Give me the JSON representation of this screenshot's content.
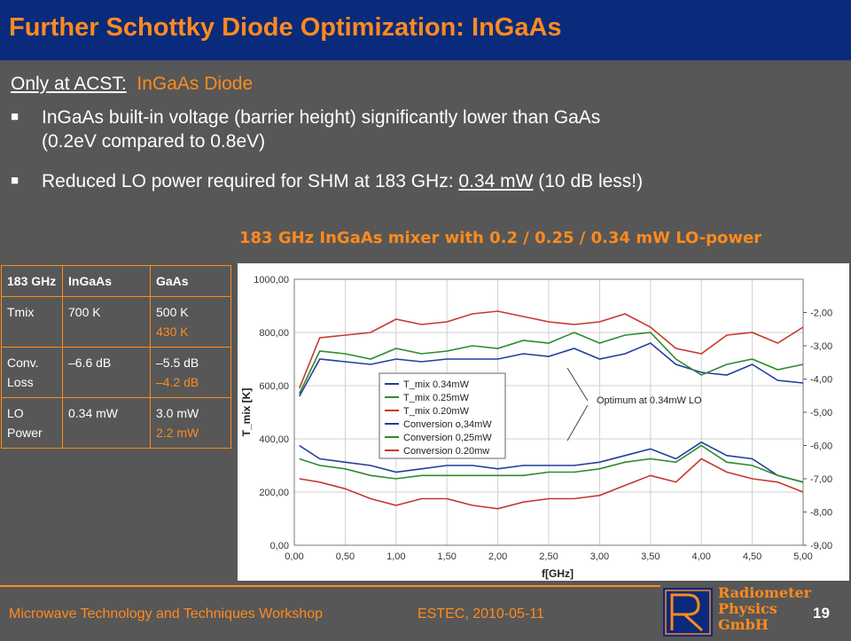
{
  "title": "Further Schottky Diode Optimization: InGaAs",
  "intro": {
    "underlined": "Only at ACST:",
    "rest": "InGaAs Diode"
  },
  "bullets": [
    {
      "mark": "■",
      "line1": "InGaAs built-in voltage (barrier height) significantly lower than GaAs",
      "line2": "(0.2eV compared to 0.8eV)"
    },
    {
      "mark": "■",
      "pre": "Reduced LO power required for SHM at 183 GHz: ",
      "ul": "0.34 mW",
      "post": " (10 dB less!)"
    }
  ],
  "chart_caption": "183 GHz InGaAs mixer with 0.2 / 0.25 / 0.34 mW LO-power",
  "table": {
    "header": [
      "183 GHz",
      "InGaAs",
      "GaAs"
    ],
    "rows": [
      {
        "label": "Tmix",
        "ingaas": "700 K",
        "gaas": "500 K",
        "gaas_alt": "430 K"
      },
      {
        "label": "Conv. Loss",
        "ingaas": "–6.6 dB",
        "gaas": "–5.5 dB",
        "gaas_alt": "–4.2 dB"
      },
      {
        "label": "LO Power",
        "ingaas": "0.34 mW",
        "gaas": "3.0 mW",
        "gaas_alt": "2.2 mW"
      }
    ]
  },
  "chart_data": {
    "type": "line",
    "xlabel": "f[GHz]",
    "ylabel": "T_mix [K]",
    "xlim": [
      0,
      5
    ],
    "ylim": [
      0,
      1000
    ],
    "y2lim": [
      -9,
      -1
    ],
    "x_ticks": [
      "0,00",
      "0,50",
      "1,00",
      "1,50",
      "2,00",
      "2,50",
      "3,00",
      "3,50",
      "4,00",
      "4,50",
      "5,00"
    ],
    "y_ticks": [
      "0,00",
      "200,00",
      "400,00",
      "600,00",
      "800,00",
      "1000,00"
    ],
    "y2_ticks": [
      "-2,00",
      "-3,00",
      "-4,00",
      "-5,00",
      "-6,00",
      "-7,00",
      "-8,00",
      "-9,00"
    ],
    "annotation": "Optimum at 0.34mW LO",
    "colors": {
      "blue": "#1f3f9e",
      "green": "#2e8b2e",
      "red": "#c8372d",
      "grid": "#d0d0d0"
    },
    "x": [
      0.05,
      0.25,
      0.5,
      0.75,
      1.0,
      1.25,
      1.5,
      1.75,
      2.0,
      2.25,
      2.5,
      2.75,
      3.0,
      3.25,
      3.5,
      3.75,
      4.0,
      4.25,
      4.5,
      4.75,
      5.0
    ],
    "series": [
      {
        "name": "T_mix 0.34mW",
        "axis": "left",
        "color": "blue",
        "values": [
          560,
          700,
          690,
          680,
          700,
          690,
          700,
          700,
          700,
          720,
          710,
          740,
          700,
          720,
          760,
          680,
          650,
          640,
          680,
          620,
          610
        ]
      },
      {
        "name": "T_mix 0.25mW",
        "axis": "left",
        "color": "green",
        "values": [
          570,
          730,
          720,
          700,
          740,
          720,
          730,
          750,
          740,
          770,
          760,
          800,
          760,
          790,
          800,
          700,
          640,
          680,
          700,
          660,
          680
        ]
      },
      {
        "name": "T_mix 0.20mW",
        "axis": "left",
        "color": "red",
        "values": [
          590,
          780,
          790,
          800,
          850,
          830,
          840,
          870,
          880,
          860,
          840,
          830,
          840,
          870,
          820,
          740,
          720,
          790,
          800,
          760,
          820
        ]
      },
      {
        "name": "Conversion o,34mW",
        "axis": "right",
        "color": "blue",
        "values": [
          -6.0,
          -6.4,
          -6.5,
          -6.6,
          -6.8,
          -6.7,
          -6.6,
          -6.6,
          -6.7,
          -6.6,
          -6.6,
          -6.6,
          -6.5,
          -6.3,
          -6.1,
          -6.4,
          -5.9,
          -6.3,
          -6.4,
          -6.9,
          -7.1
        ]
      },
      {
        "name": "Conversion 0,25mW",
        "axis": "right",
        "color": "green",
        "values": [
          -6.4,
          -6.6,
          -6.7,
          -6.9,
          -7.0,
          -6.9,
          -6.9,
          -6.9,
          -6.9,
          -6.9,
          -6.8,
          -6.8,
          -6.7,
          -6.5,
          -6.4,
          -6.5,
          -6.0,
          -6.5,
          -6.6,
          -6.9,
          -7.1
        ]
      },
      {
        "name": "Conversion 0.20mw",
        "axis": "right",
        "color": "red",
        "values": [
          -7.0,
          -7.1,
          -7.3,
          -7.6,
          -7.8,
          -7.6,
          -7.6,
          -7.8,
          -7.9,
          -7.7,
          -7.6,
          -7.6,
          -7.5,
          -7.2,
          -6.9,
          -7.1,
          -6.4,
          -6.8,
          -7.0,
          -7.1,
          -7.4
        ]
      }
    ]
  },
  "footer": {
    "left": "Microwave Technology and Techniques Workshop",
    "mid": "ESTEC, 2010-05-11",
    "page": "19",
    "logo_lines": [
      "Radiometer",
      "Physics",
      "GmbH"
    ],
    "logo_mark": "RPG"
  }
}
